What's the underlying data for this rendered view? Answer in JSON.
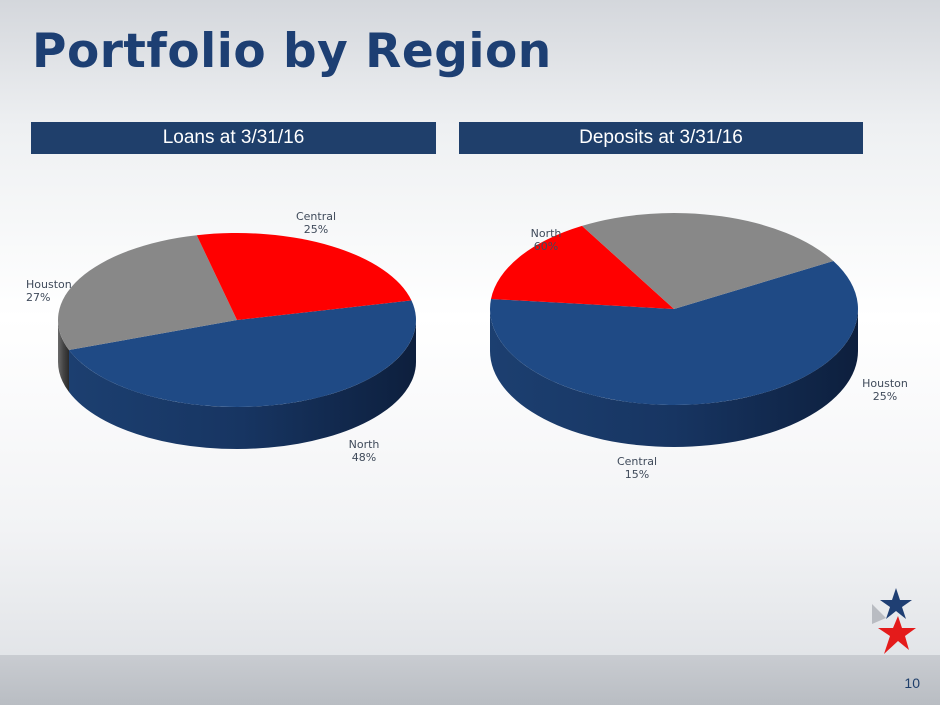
{
  "title": "Portfolio by Region",
  "page_number": "10",
  "colors": {
    "North": "#1f4a85",
    "Central": "#ff0000",
    "Houston": "#888888",
    "header": "#1f3f6b"
  },
  "chart_data": [
    {
      "type": "pie",
      "title": "Loans at 3/31/16",
      "slices": [
        {
          "name": "North",
          "label": "48%",
          "value": 48
        },
        {
          "name": "Houston",
          "label": "27%",
          "value": 27
        },
        {
          "name": "Central",
          "label": "25%",
          "value": 25
        }
      ]
    },
    {
      "type": "pie",
      "title": "Deposits at 3/31/16",
      "slices": [
        {
          "name": "North",
          "label": "60%",
          "value": 60
        },
        {
          "name": "Central",
          "label": "15%",
          "value": 15
        },
        {
          "name": "Houston",
          "label": "25%",
          "value": 25
        }
      ]
    }
  ]
}
